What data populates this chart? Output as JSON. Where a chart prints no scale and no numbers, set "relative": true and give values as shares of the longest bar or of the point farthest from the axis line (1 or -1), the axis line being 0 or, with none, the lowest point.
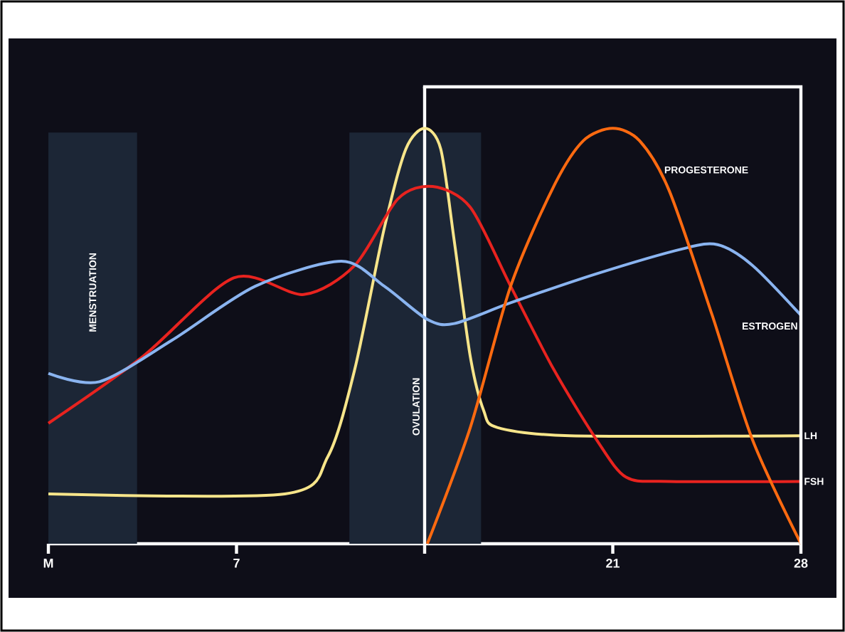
{
  "chart_data": {
    "type": "line",
    "relative": true,
    "xlim": [
      0,
      28
    ],
    "xticks": [
      {
        "value": 0,
        "label": "M"
      },
      7,
      {
        "value": 14,
        "label": null
      },
      21,
      28
    ],
    "series": [
      {
        "name": "LH",
        "color": "#f7e58a",
        "x": [
          0,
          8.8,
          10.4,
          11.4,
          12.5,
          13.3,
          14,
          14.6,
          15.1,
          15.7,
          16.2,
          16.7,
          19.4,
          28
        ],
        "values": [
          0.12,
          0.12,
          0.21,
          0.42,
          0.76,
          0.95,
          1.0,
          0.95,
          0.73,
          0.45,
          0.32,
          0.28,
          0.26,
          0.26
        ]
      },
      {
        "name": "FSH",
        "color": "#e8231f",
        "x": [
          0,
          3.5,
          6.9,
          9.5,
          11.4,
          13.0,
          14.3,
          15.7,
          17.2,
          18.8,
          20.4,
          21.5,
          23.1,
          28
        ],
        "values": [
          0.29,
          0.45,
          0.64,
          0.6,
          0.67,
          0.83,
          0.86,
          0.81,
          0.62,
          0.42,
          0.25,
          0.16,
          0.15,
          0.15
        ]
      },
      {
        "name": "ESTROGEN",
        "color": "#8ab4f0",
        "x": [
          0,
          1.9,
          4.6,
          7.7,
          10.9,
          12.5,
          14.1,
          15.1,
          17.2,
          20.4,
          23.6,
          24.9,
          26.2,
          28
        ],
        "values": [
          0.41,
          0.39,
          0.49,
          0.62,
          0.68,
          0.62,
          0.54,
          0.53,
          0.58,
          0.65,
          0.71,
          0.72,
          0.67,
          0.55
        ]
      },
      {
        "name": "PROGESTERONE",
        "color": "#ff6a10",
        "x": [
          14.1,
          15.7,
          17.2,
          18.8,
          19.9,
          21,
          22,
          23.1,
          24.7,
          26.2,
          28
        ],
        "values": [
          0.0,
          0.28,
          0.62,
          0.86,
          0.97,
          1.0,
          0.97,
          0.85,
          0.55,
          0.25,
          0.0
        ]
      }
    ],
    "bands": [
      {
        "axis": "x",
        "from": 0,
        "to": 3.3,
        "label": "MENSTRUATION",
        "color": "#1c2636"
      },
      {
        "axis": "x",
        "from": 11.2,
        "to": 16.1,
        "color": "#1c2636"
      }
    ],
    "ref_lines": [
      {
        "axis": "x",
        "value": 14,
        "label": "OVULATION",
        "color": "#ffffff"
      }
    ]
  }
}
